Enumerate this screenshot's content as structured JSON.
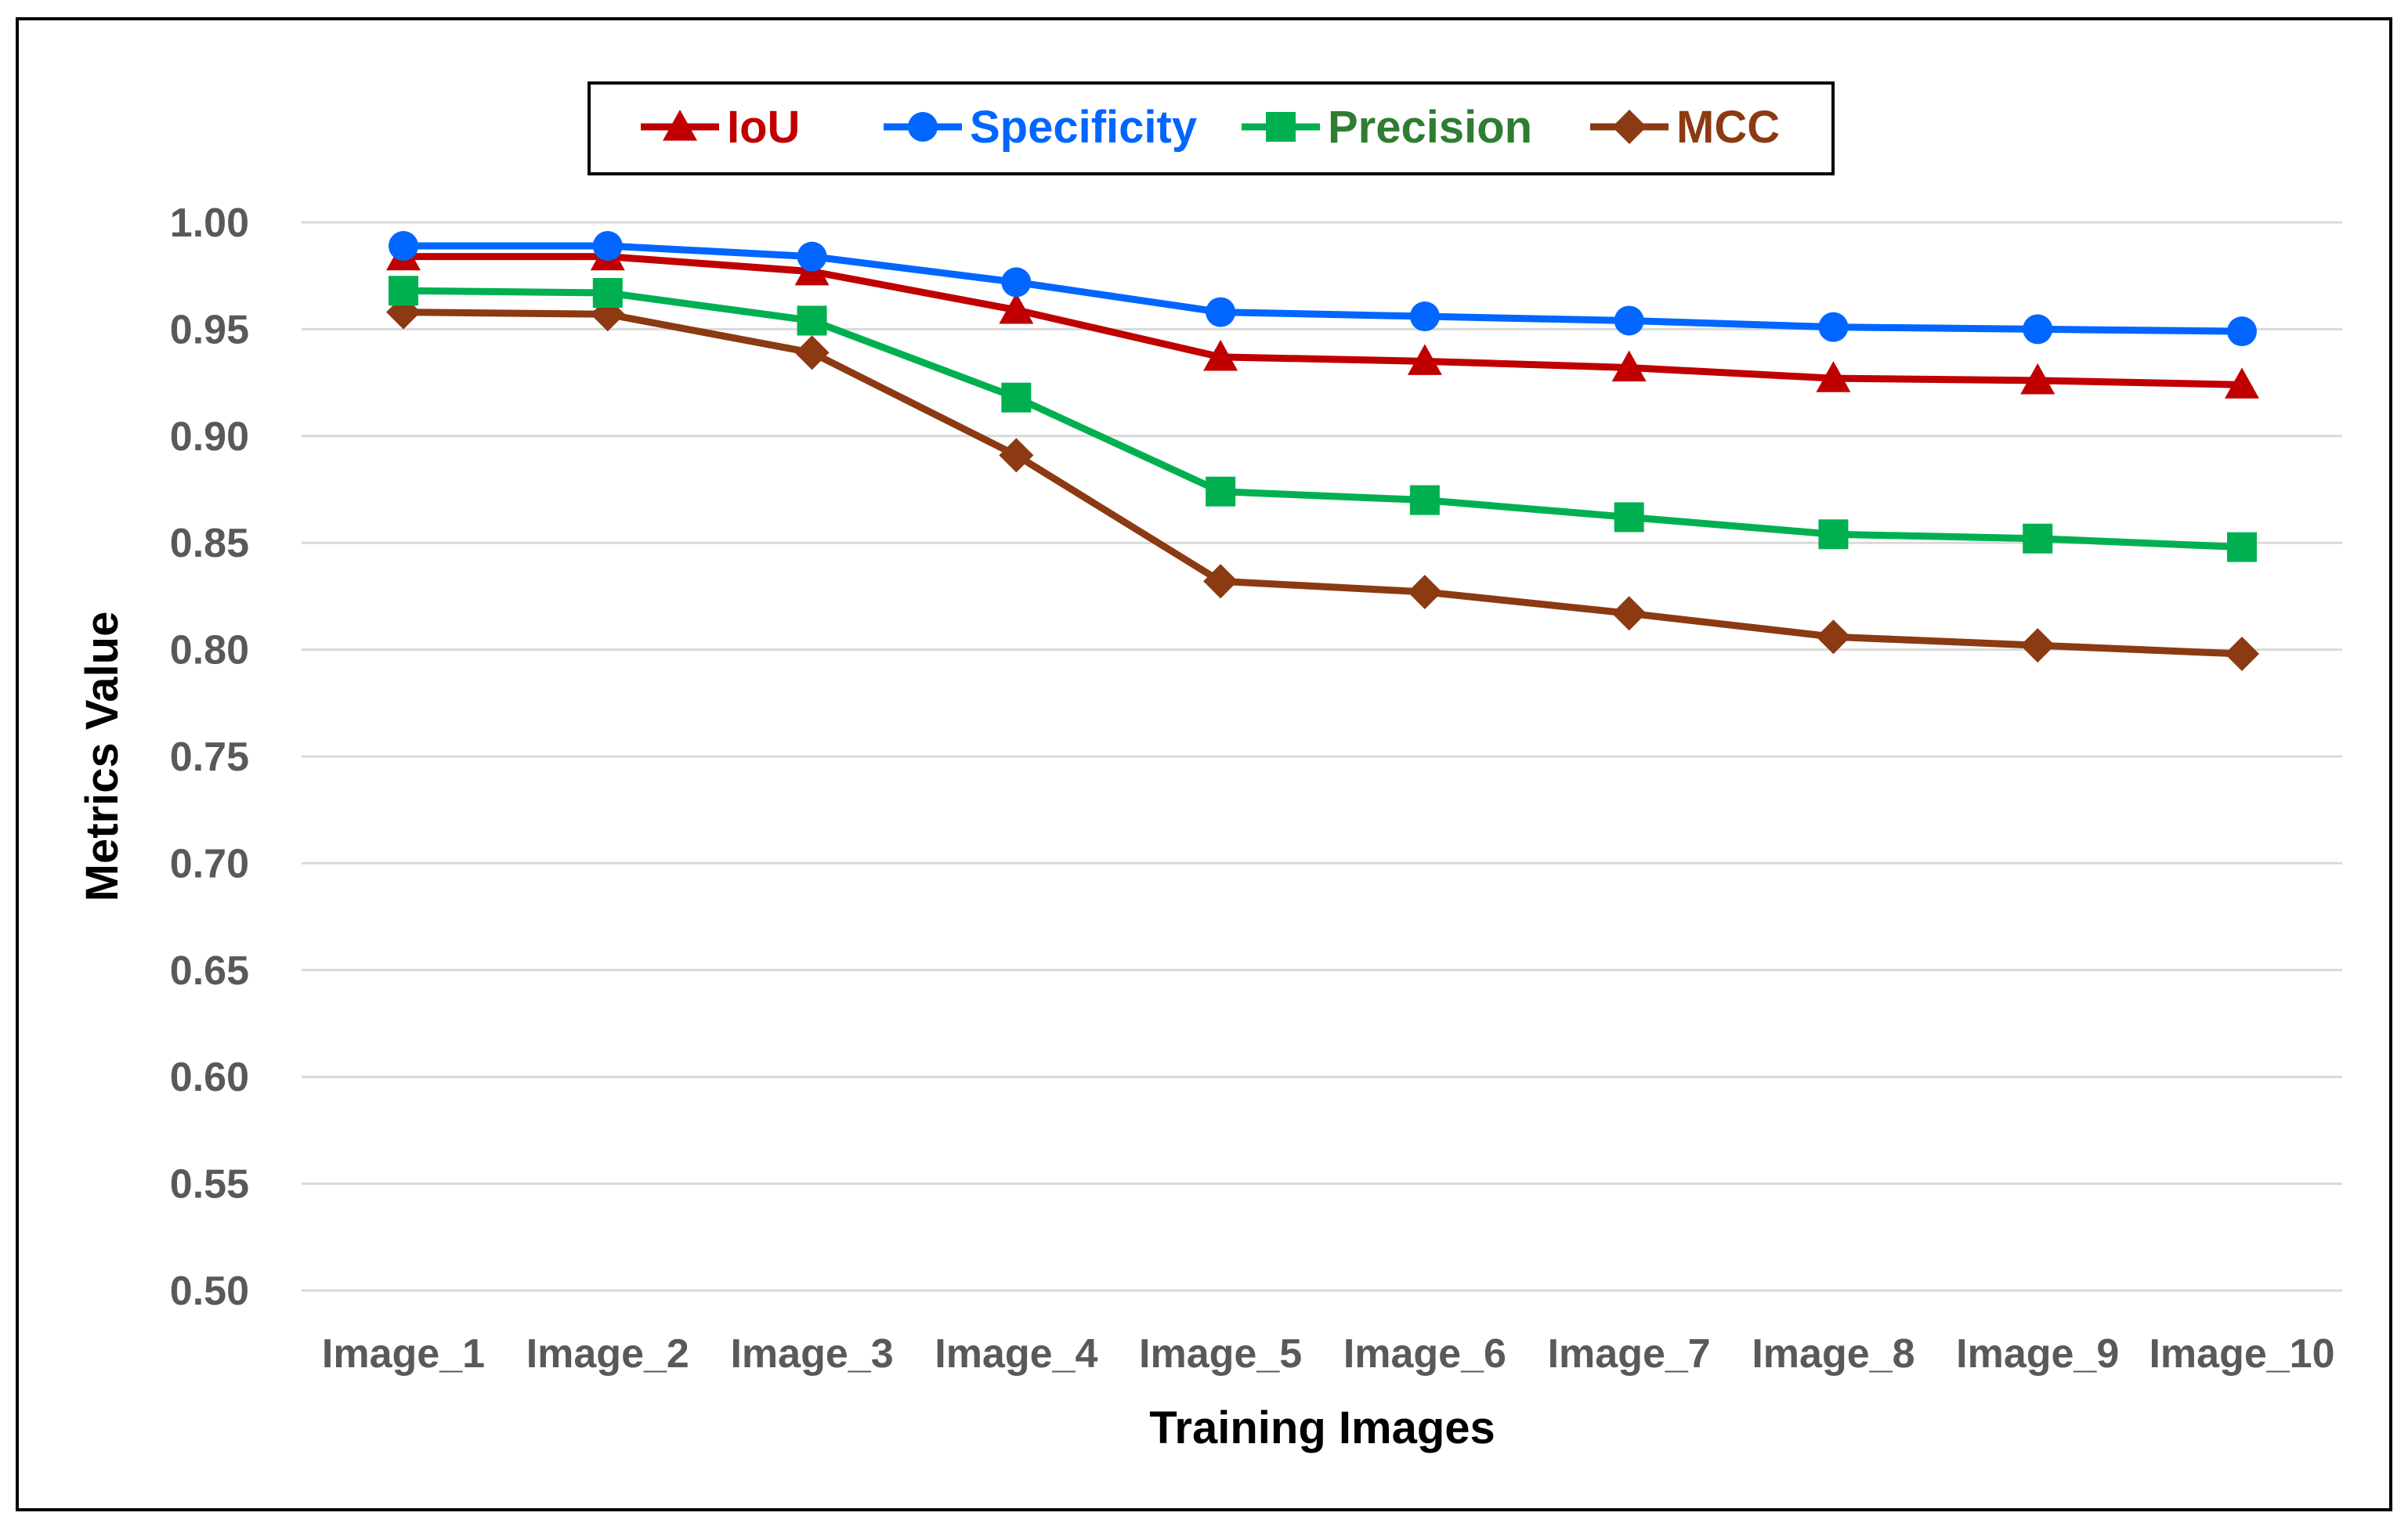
{
  "chart_data": {
    "type": "line",
    "title": "",
    "xlabel": "Training Images",
    "ylabel": "Metrics Value",
    "categories": [
      "Image_1",
      "Image_2",
      "Image_3",
      "Image_4",
      "Image_5",
      "Image_6",
      "Image_7",
      "Image_8",
      "Image_9",
      "Image_10"
    ],
    "ylim": [
      0.5,
      1.0
    ],
    "yticks": [
      "0.50",
      "0.55",
      "0.60",
      "0.65",
      "0.70",
      "0.75",
      "0.80",
      "0.85",
      "0.90",
      "0.95",
      "1.00"
    ],
    "grid": true,
    "legend_position": "top",
    "series": [
      {
        "name": "IoU",
        "color": "#c00000",
        "marker": "triangle",
        "values": [
          0.984,
          0.984,
          0.977,
          0.959,
          0.937,
          0.935,
          0.932,
          0.927,
          0.926,
          0.924
        ]
      },
      {
        "name": "Specificity",
        "color": "#0066ff",
        "marker": "circle",
        "values": [
          0.989,
          0.989,
          0.984,
          0.972,
          0.958,
          0.956,
          0.954,
          0.951,
          0.95,
          0.949
        ]
      },
      {
        "name": "Precision",
        "color": "#00b050",
        "label_color": "#2e7d32",
        "marker": "square",
        "values": [
          0.968,
          0.967,
          0.954,
          0.918,
          0.874,
          0.87,
          0.862,
          0.854,
          0.852,
          0.848
        ]
      },
      {
        "name": "MCC",
        "color": "#8b3a12",
        "label_color": "#8b3a12",
        "marker": "diamond",
        "values": [
          0.958,
          0.957,
          0.939,
          0.891,
          0.832,
          0.827,
          0.817,
          0.806,
          0.802,
          0.798
        ]
      }
    ]
  }
}
